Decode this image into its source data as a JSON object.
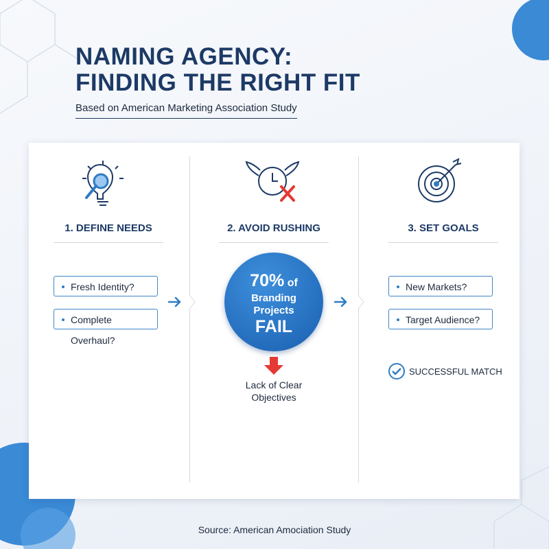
{
  "header": {
    "title_lines": [
      "NAMING AGENCY:",
      "FINDING THE RIGHT FIT"
    ],
    "subtitle": "Based on American Marketing Association Study"
  },
  "columns": [
    {
      "heading": "1. DEFINE NEEDS",
      "items": [
        "Fresh Identity?",
        "Complete Overhaul?"
      ]
    },
    {
      "heading": "2. AVOID RUSHING",
      "stat": "70%",
      "stat_suffix": "of",
      "stat_lines": [
        "Branding",
        "Projects"
      ],
      "stat_result": "FAIL",
      "cause": "Lack of Clear Objectives"
    },
    {
      "heading": "3. SET GOALS",
      "items": [
        "New Markets?",
        "Target Audience?"
      ],
      "outcome": "SUCCESSFUL MATCH"
    }
  ],
  "footer": {
    "source": "Source: American Amociation Study"
  }
}
